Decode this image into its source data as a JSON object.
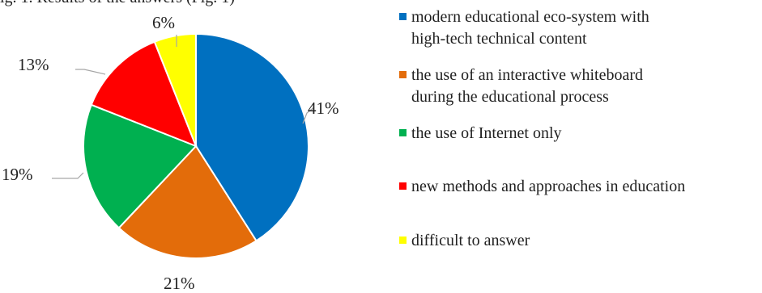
{
  "caption_fragment": "ig. 1. Results of the answers (Fig. 1)",
  "chart_data": {
    "type": "pie",
    "title": "",
    "start": "12 o'clock, clockwise",
    "slices": [
      {
        "label": "modern educational eco-system with\nhigh-tech technical content",
        "value": 41,
        "display": "41%",
        "color": "#0070c0"
      },
      {
        "label": "the use of an interactive  whiteboard\nduring the educational process",
        "value": 21,
        "display": "21%",
        "color": "#e36c0a"
      },
      {
        "label": "the use of Internet only",
        "value": 19,
        "display": "19%",
        "color": "#00b050"
      },
      {
        "label": "new methods and approaches in education",
        "value": 13,
        "display": "13%",
        "color": "#ff0000"
      },
      {
        "label": "difficult to answer",
        "value": 6,
        "display": "6%",
        "color": "#ffff00"
      }
    ],
    "legend_position": "right"
  }
}
